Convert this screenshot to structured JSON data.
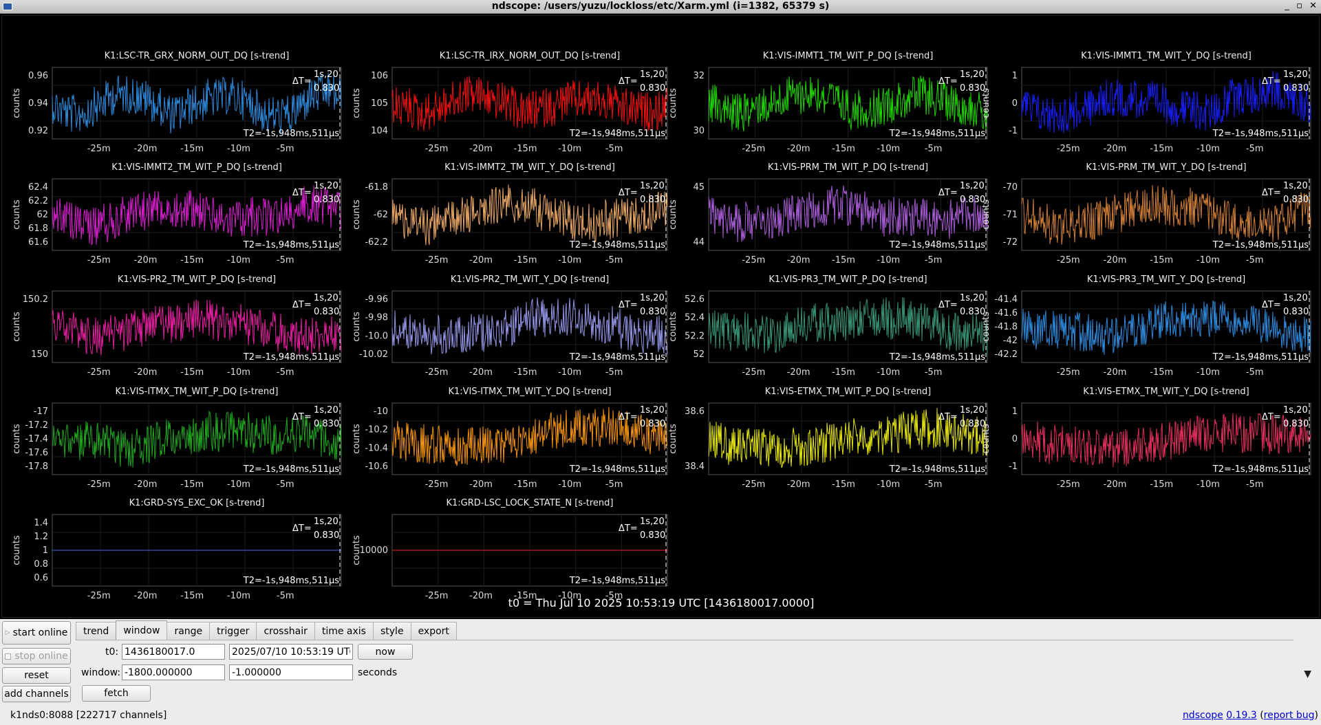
{
  "window": {
    "title": "ndscope: /users/yuzu/lockloss/etc/Xarm.yml (i=1382, 65379 s)",
    "controls": [
      "_",
      "▫",
      "✕"
    ]
  },
  "plots": [
    {
      "title": "K1:LSC-TR_GRX_NORM_OUT_DQ [s-trend]",
      "color": "#2f8fe6",
      "ylabel": "counts",
      "yticks": [
        "0.96",
        "0.94",
        "0.92"
      ]
    },
    {
      "title": "K1:LSC-TR_IRX_NORM_OUT_DQ [s-trend]",
      "color": "#ff1010",
      "ylabel": "counts",
      "yticks": [
        "106",
        "105",
        "104"
      ]
    },
    {
      "title": "K1:VIS-IMMT1_TM_WIT_P_DQ [s-trend]",
      "color": "#22e000",
      "ylabel": "counts",
      "yticks": [
        "32",
        "30"
      ]
    },
    {
      "title": "K1:VIS-IMMT1_TM_WIT_Y_DQ [s-trend]",
      "color": "#1820ff",
      "ylabel": "counts",
      "yticks": [
        "1",
        "0",
        "-1"
      ]
    },
    {
      "title": "K1:VIS-IMMT2_TM_WIT_P_DQ [s-trend]",
      "color": "#e020d8",
      "ylabel": "counts",
      "yticks": [
        "62.4",
        "62.2",
        "62",
        "61.8",
        "61.6"
      ]
    },
    {
      "title": "K1:VIS-IMMT2_TM_WIT_Y_DQ [s-trend]",
      "color": "#f4b06a",
      "ylabel": "counts",
      "yticks": [
        "-61.8",
        "-62",
        "-62.2"
      ]
    },
    {
      "title": "K1:VIS-PRM_TM_WIT_P_DQ [s-trend]",
      "color": "#b060e0",
      "ylabel": "counts",
      "yticks": [
        "45",
        "44"
      ]
    },
    {
      "title": "K1:VIS-PRM_TM_WIT_Y_DQ [s-trend]",
      "color": "#d8843a",
      "ylabel": "counts",
      "yticks": [
        "-70",
        "-71",
        "-72"
      ]
    },
    {
      "title": "K1:VIS-PR2_TM_WIT_P_DQ [s-trend]",
      "color": "#f020a8",
      "ylabel": "counts",
      "yticks": [
        "150.2",
        "150"
      ]
    },
    {
      "title": "K1:VIS-PR2_TM_WIT_Y_DQ [s-trend]",
      "color": "#9a9cf0",
      "ylabel": "counts",
      "yticks": [
        "-9.96",
        "-9.98",
        "-10.0",
        "-10.02"
      ]
    },
    {
      "title": "K1:VIS-PR3_TM_WIT_P_DQ [s-trend]",
      "color": "#3a9a7a",
      "ylabel": "counts",
      "yticks": [
        "52.6",
        "52.4",
        "52.2",
        "52"
      ]
    },
    {
      "title": "K1:VIS-PR3_TM_WIT_Y_DQ [s-trend]",
      "color": "#2f8fe6",
      "ylabel": "counts",
      "yticks": [
        "-41.4",
        "-41.6",
        "-41.8",
        "-42",
        "-42.2"
      ]
    },
    {
      "title": "K1:VIS-ITMX_TM_WIT_P_DQ [s-trend]",
      "color": "#22b022",
      "ylabel": "counts",
      "yticks": [
        "-17",
        "-17.2",
        "-17.4",
        "-17.6",
        "-17.8"
      ]
    },
    {
      "title": "K1:VIS-ITMX_TM_WIT_Y_DQ [s-trend]",
      "color": "#ff9a10",
      "ylabel": "counts",
      "yticks": [
        "-10",
        "-10.2",
        "-10.4",
        "-10.6"
      ]
    },
    {
      "title": "K1:VIS-ETMX_TM_WIT_P_DQ [s-trend]",
      "color": "#f0f010",
      "ylabel": "counts",
      "yticks": [
        "38.6",
        "38.4"
      ]
    },
    {
      "title": "K1:VIS-ETMX_TM_WIT_Y_DQ [s-trend]",
      "color": "#f03060",
      "ylabel": "counts",
      "yticks": [
        "1",
        "0",
        "-1"
      ]
    },
    {
      "title": "K1:GRD-SYS_EXC_OK [s-trend]",
      "color": "#3a70e0",
      "ylabel": "counts",
      "yticks": [
        "1.4",
        "1.2",
        "1",
        "0.8",
        "0.6"
      ],
      "flat": true
    },
    {
      "title": "K1:GRD-LSC_LOCK_STATE_N [s-trend]",
      "color": "#ff2020",
      "ylabel": "counts",
      "yticks": [
        "10000"
      ],
      "flat": true
    }
  ],
  "xticks": [
    "-25m",
    "-20m",
    "-15m",
    "-10m",
    "-5m"
  ],
  "cursor": {
    "delta_label": "ΔT=",
    "delta_val1": "1s,20",
    "delta_val2": "0.830",
    "t2_label": "T2=-1s,948ms,511μs"
  },
  "t0_label": "t0 = Thu Jul 10 2025 10:53:19 UTC [1436180017.0000]",
  "buttons": {
    "start_online": "start online",
    "stop_online": "stop online",
    "reset": "reset",
    "add_channels": "add channels",
    "fetch": "fetch",
    "now": "now"
  },
  "tabs": [
    "trend",
    "window",
    "range",
    "trigger",
    "crosshair",
    "time axis",
    "style",
    "export"
  ],
  "active_tab": "window",
  "window_tab": {
    "t0_label": "t0:",
    "t0_gps": "1436180017.0",
    "t0_utc": "2025/07/10 10:53:19 UTC",
    "window_label": "window:",
    "window_start": "-1800.000000",
    "window_end": "-1.000000",
    "units": "seconds"
  },
  "status": {
    "server": "k1nds0:8088  [222717 channels]",
    "app": "ndscope",
    "version": "0.19.3",
    "report": "report bug"
  }
}
